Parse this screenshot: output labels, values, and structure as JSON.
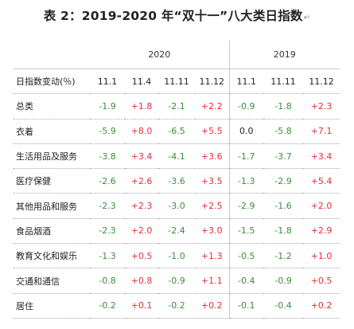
{
  "title": "表 2：2019-2020 年“双十一”八大类日指数",
  "title_mark": "↵",
  "years": [
    "2020",
    "2019"
  ],
  "header": {
    "label": "日指数变动(％)",
    "columns": [
      "11.1",
      "11.4",
      "11.11",
      "11.12",
      "11.1",
      "11.11",
      "11.12"
    ]
  },
  "rows": [
    {
      "label": "总类",
      "values": [
        "-1.9",
        "+1.8",
        "-2.1",
        "+2.2",
        "-0.9",
        "-1.8",
        "+2.3"
      ]
    },
    {
      "label": "衣着",
      "values": [
        "-5.9",
        "+8.0",
        "-6.5",
        "+5.5",
        "0.0",
        "-5.8",
        "+7.1"
      ]
    },
    {
      "label": "生活用品及服务",
      "values": [
        "-3.8",
        "+3.4",
        "-4.1",
        "+3.6",
        "-1.7",
        "-3.7",
        "+3.4"
      ]
    },
    {
      "label": "医疗保健",
      "values": [
        "-2.6",
        "+2.6",
        "-3.6",
        "+3.5",
        "-1.3",
        "-2.9",
        "+5.4"
      ]
    },
    {
      "label": "其他用品和服务",
      "values": [
        "-2.3",
        "+2.3",
        "-3.0",
        "+2.5",
        "-2.9",
        "-1.6",
        "+2.0"
      ]
    },
    {
      "label": "食品烟酒",
      "values": [
        "-2.3",
        "+2.0",
        "-2.4",
        "+3.0",
        "-1.5",
        "-1.8",
        "+2.9"
      ]
    },
    {
      "label": "教育文化和娱乐",
      "values": [
        "-1.3",
        "+0.5",
        "-1.0",
        "+1.3",
        "-0.5",
        "-1.2",
        "+1.0"
      ]
    },
    {
      "label": "交通和通信",
      "values": [
        "-0.8",
        "+0.8",
        "-0.9",
        "+1.1",
        "-0.4",
        "-0.9",
        "+0.5"
      ]
    },
    {
      "label": "居住",
      "values": [
        "-0.2",
        "+0.1",
        "-0.2",
        "+0.2",
        "-0.1",
        "-0.4",
        "+0.2"
      ]
    }
  ],
  "colors": {
    "positive": "#e0303c",
    "negative": "#3c8c3c",
    "neutral": "#222222"
  }
}
